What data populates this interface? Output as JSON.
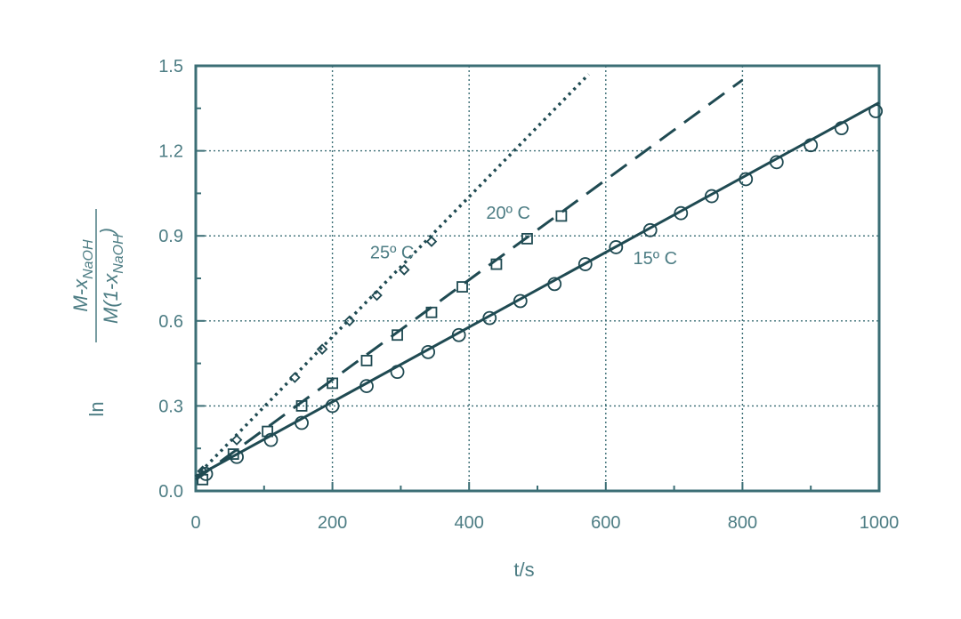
{
  "colors": {
    "axis": "#3b6e75",
    "text": "#4d7d84",
    "series": "#1f4a52",
    "grid": "#3b6e75"
  },
  "chart_data": {
    "type": "scatter",
    "title": "",
    "xlabel": "t/s",
    "ylabel": {
      "prefix": "ln",
      "numerator": "M-x",
      "numerator_sub": "NaOH",
      "denominator": "M(1-x",
      "denominator_sub": "NaOH",
      "denominator_close": ")"
    },
    "xlim": [
      0,
      1000
    ],
    "ylim": [
      0,
      1.5
    ],
    "x_ticks": [
      0,
      200,
      400,
      600,
      800,
      1000
    ],
    "x_tick_labels": [
      "0",
      "200",
      "400",
      "600",
      "800",
      "1000"
    ],
    "y_ticks": [
      0,
      0.3,
      0.6,
      0.9,
      1.2,
      1.5
    ],
    "y_tick_labels": [
      "0.0",
      "0.3",
      "0.6",
      "0.9",
      "1.2",
      "1.5"
    ],
    "grid": true,
    "series": [
      {
        "name": "25º C",
        "marker": "diamond",
        "line_style": "dotted",
        "fit": {
          "x": [
            0,
            575
          ],
          "y": [
            0.05,
            1.47
          ]
        },
        "label_at": {
          "x": 255,
          "y": 0.82
        },
        "points": [
          {
            "x": 10,
            "y": 0.07
          },
          {
            "x": 60,
            "y": 0.18
          },
          {
            "x": 145,
            "y": 0.4
          },
          {
            "x": 185,
            "y": 0.5
          },
          {
            "x": 225,
            "y": 0.6
          },
          {
            "x": 265,
            "y": 0.69
          },
          {
            "x": 305,
            "y": 0.78
          },
          {
            "x": 345,
            "y": 0.88
          }
        ]
      },
      {
        "name": "20º C",
        "marker": "square",
        "line_style": "dashed",
        "fit": {
          "x": [
            0,
            800
          ],
          "y": [
            0.04,
            1.45
          ]
        },
        "label_at": {
          "x": 425,
          "y": 0.96
        },
        "points": [
          {
            "x": 10,
            "y": 0.04
          },
          {
            "x": 55,
            "y": 0.13
          },
          {
            "x": 105,
            "y": 0.21
          },
          {
            "x": 155,
            "y": 0.3
          },
          {
            "x": 200,
            "y": 0.38
          },
          {
            "x": 250,
            "y": 0.46
          },
          {
            "x": 295,
            "y": 0.55
          },
          {
            "x": 345,
            "y": 0.63
          },
          {
            "x": 390,
            "y": 0.72
          },
          {
            "x": 440,
            "y": 0.8
          },
          {
            "x": 485,
            "y": 0.89
          },
          {
            "x": 535,
            "y": 0.97
          }
        ]
      },
      {
        "name": "15º C",
        "marker": "circle",
        "line_style": "solid",
        "fit": {
          "x": [
            0,
            1000
          ],
          "y": [
            0.05,
            1.37
          ]
        },
        "label_at": {
          "x": 640,
          "y": 0.8
        },
        "points": [
          {
            "x": 15,
            "y": 0.06
          },
          {
            "x": 60,
            "y": 0.12
          },
          {
            "x": 110,
            "y": 0.18
          },
          {
            "x": 155,
            "y": 0.24
          },
          {
            "x": 200,
            "y": 0.3
          },
          {
            "x": 250,
            "y": 0.37
          },
          {
            "x": 295,
            "y": 0.42
          },
          {
            "x": 340,
            "y": 0.49
          },
          {
            "x": 385,
            "y": 0.55
          },
          {
            "x": 430,
            "y": 0.61
          },
          {
            "x": 475,
            "y": 0.67
          },
          {
            "x": 525,
            "y": 0.73
          },
          {
            "x": 570,
            "y": 0.8
          },
          {
            "x": 615,
            "y": 0.86
          },
          {
            "x": 665,
            "y": 0.92
          },
          {
            "x": 710,
            "y": 0.98
          },
          {
            "x": 755,
            "y": 1.04
          },
          {
            "x": 805,
            "y": 1.1
          },
          {
            "x": 850,
            "y": 1.16
          },
          {
            "x": 900,
            "y": 1.22
          },
          {
            "x": 945,
            "y": 1.28
          },
          {
            "x": 995,
            "y": 1.34
          }
        ]
      }
    ]
  }
}
